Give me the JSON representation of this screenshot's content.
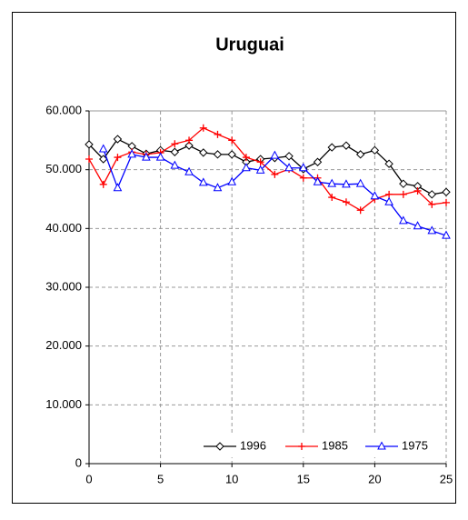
{
  "chart_data": {
    "type": "line",
    "title": "Uruguai",
    "x": [
      0,
      1,
      2,
      3,
      4,
      5,
      6,
      7,
      8,
      9,
      10,
      11,
      12,
      13,
      14,
      15,
      16,
      17,
      18,
      19,
      20,
      21,
      22,
      23,
      24,
      25
    ],
    "xlim": [
      0,
      25
    ],
    "xticks": [
      0,
      5,
      10,
      15,
      20,
      25
    ],
    "ylim": [
      0,
      60000
    ],
    "yticks": [
      0,
      {
        "value": 10000,
        "label": "10.000"
      },
      {
        "value": 20000,
        "label": "20.000"
      },
      {
        "value": 30000,
        "label": "30.000"
      },
      {
        "value": 40000,
        "label": "40.000"
      },
      {
        "value": 50000,
        "label": "50.000"
      },
      {
        "value": 60000,
        "label": "60.000"
      }
    ],
    "grid": true,
    "legend": "lower right",
    "series": [
      {
        "name": "1996",
        "color": "#000000",
        "marker": "diamond",
        "values": [
          54300,
          51800,
          55200,
          54000,
          52700,
          53300,
          53000,
          54100,
          52900,
          52600,
          52600,
          51300,
          51800,
          52000,
          52300,
          50100,
          51300,
          53800,
          54100,
          52600,
          53300,
          51000,
          47600,
          47200,
          45800,
          46200
        ]
      },
      {
        "name": "1985",
        "color": "#ff0000",
        "marker": "plus",
        "values": [
          51800,
          47500,
          52100,
          53000,
          52600,
          52900,
          54400,
          55000,
          57100,
          56000,
          55000,
          52100,
          51300,
          49200,
          50100,
          48600,
          48600,
          45300,
          44500,
          43100,
          45000,
          45800,
          45800,
          46400,
          44100,
          44400
        ]
      },
      {
        "name": "1975",
        "color": "#0000ff",
        "marker": "triangle",
        "values": [
          null,
          53500,
          46900,
          52600,
          52100,
          52100,
          50700,
          49600,
          47800,
          46900,
          47900,
          50300,
          49900,
          52400,
          50300,
          50300,
          47900,
          47600,
          47500,
          47600,
          45500,
          44500,
          41300,
          40400,
          39600,
          38800
        ]
      }
    ]
  }
}
